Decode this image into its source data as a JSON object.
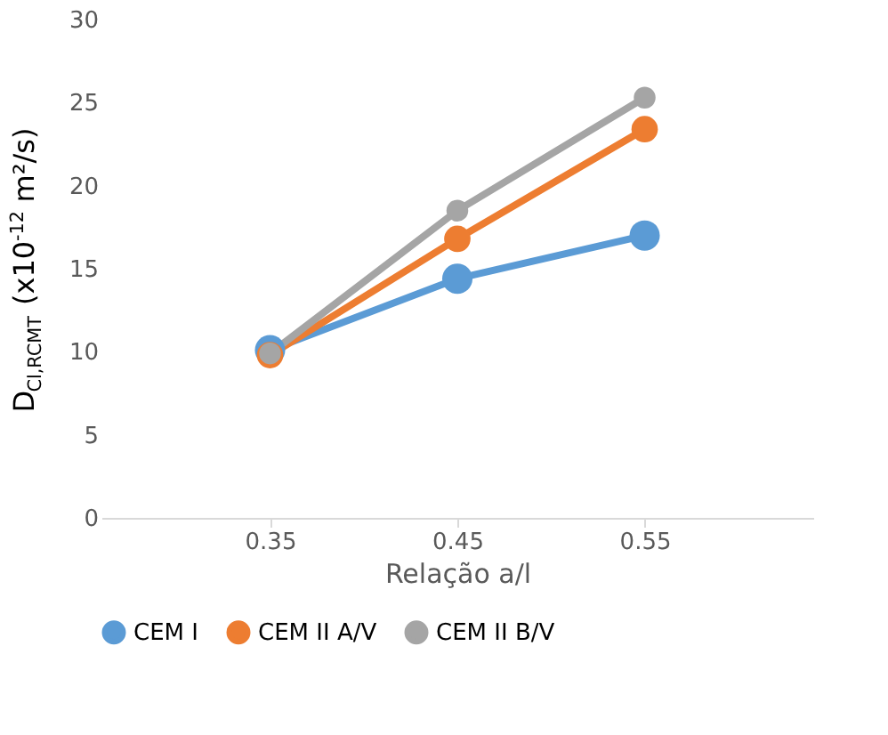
{
  "chart_data": {
    "type": "line",
    "xlabel": "Relação  a/l",
    "ylabel": "D$_{Cl,RCMT}$ (x10$^{-12}$ m²/s)",
    "categories": [
      "0.35",
      "0.45",
      "0.55"
    ],
    "series": [
      {
        "name": "CEM I",
        "color": "#5b9bd5",
        "values": [
          10.1,
          14.4,
          17.0
        ]
      },
      {
        "name": "CEM II A/V",
        "color": "#ed7d31",
        "values": [
          9.8,
          16.8,
          23.4
        ]
      },
      {
        "name": "CEM II B/V",
        "color": "#a5a5a5",
        "values": [
          9.9,
          18.5,
          25.3
        ]
      }
    ],
    "ylim": [
      0,
      30
    ],
    "yticks": [
      0,
      5,
      10,
      15,
      20,
      25,
      30
    ],
    "grid": false,
    "legend": "bottom",
    "marker": "circle",
    "line_style": "solid"
  }
}
